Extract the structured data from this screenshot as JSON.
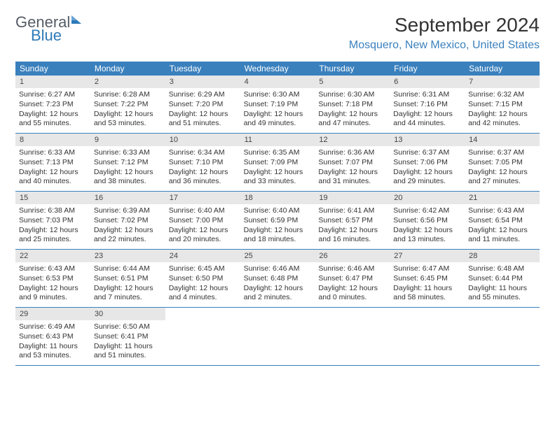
{
  "brand": {
    "line1": "General",
    "line2": "Blue"
  },
  "title": "September 2024",
  "location": "Mosquero, New Mexico, United States",
  "colors": {
    "header_bar": "#3a80bd",
    "daynum_bg": "#e7e7e7",
    "accent_text": "#3a80bd",
    "body_text": "#333333",
    "background": "#ffffff"
  },
  "weekdays": [
    "Sunday",
    "Monday",
    "Tuesday",
    "Wednesday",
    "Thursday",
    "Friday",
    "Saturday"
  ],
  "weeks": [
    [
      {
        "n": "1",
        "sr": "Sunrise: 6:27 AM",
        "ss": "Sunset: 7:23 PM",
        "dl": "Daylight: 12 hours and 55 minutes."
      },
      {
        "n": "2",
        "sr": "Sunrise: 6:28 AM",
        "ss": "Sunset: 7:22 PM",
        "dl": "Daylight: 12 hours and 53 minutes."
      },
      {
        "n": "3",
        "sr": "Sunrise: 6:29 AM",
        "ss": "Sunset: 7:20 PM",
        "dl": "Daylight: 12 hours and 51 minutes."
      },
      {
        "n": "4",
        "sr": "Sunrise: 6:30 AM",
        "ss": "Sunset: 7:19 PM",
        "dl": "Daylight: 12 hours and 49 minutes."
      },
      {
        "n": "5",
        "sr": "Sunrise: 6:30 AM",
        "ss": "Sunset: 7:18 PM",
        "dl": "Daylight: 12 hours and 47 minutes."
      },
      {
        "n": "6",
        "sr": "Sunrise: 6:31 AM",
        "ss": "Sunset: 7:16 PM",
        "dl": "Daylight: 12 hours and 44 minutes."
      },
      {
        "n": "7",
        "sr": "Sunrise: 6:32 AM",
        "ss": "Sunset: 7:15 PM",
        "dl": "Daylight: 12 hours and 42 minutes."
      }
    ],
    [
      {
        "n": "8",
        "sr": "Sunrise: 6:33 AM",
        "ss": "Sunset: 7:13 PM",
        "dl": "Daylight: 12 hours and 40 minutes."
      },
      {
        "n": "9",
        "sr": "Sunrise: 6:33 AM",
        "ss": "Sunset: 7:12 PM",
        "dl": "Daylight: 12 hours and 38 minutes."
      },
      {
        "n": "10",
        "sr": "Sunrise: 6:34 AM",
        "ss": "Sunset: 7:10 PM",
        "dl": "Daylight: 12 hours and 36 minutes."
      },
      {
        "n": "11",
        "sr": "Sunrise: 6:35 AM",
        "ss": "Sunset: 7:09 PM",
        "dl": "Daylight: 12 hours and 33 minutes."
      },
      {
        "n": "12",
        "sr": "Sunrise: 6:36 AM",
        "ss": "Sunset: 7:07 PM",
        "dl": "Daylight: 12 hours and 31 minutes."
      },
      {
        "n": "13",
        "sr": "Sunrise: 6:37 AM",
        "ss": "Sunset: 7:06 PM",
        "dl": "Daylight: 12 hours and 29 minutes."
      },
      {
        "n": "14",
        "sr": "Sunrise: 6:37 AM",
        "ss": "Sunset: 7:05 PM",
        "dl": "Daylight: 12 hours and 27 minutes."
      }
    ],
    [
      {
        "n": "15",
        "sr": "Sunrise: 6:38 AM",
        "ss": "Sunset: 7:03 PM",
        "dl": "Daylight: 12 hours and 25 minutes."
      },
      {
        "n": "16",
        "sr": "Sunrise: 6:39 AM",
        "ss": "Sunset: 7:02 PM",
        "dl": "Daylight: 12 hours and 22 minutes."
      },
      {
        "n": "17",
        "sr": "Sunrise: 6:40 AM",
        "ss": "Sunset: 7:00 PM",
        "dl": "Daylight: 12 hours and 20 minutes."
      },
      {
        "n": "18",
        "sr": "Sunrise: 6:40 AM",
        "ss": "Sunset: 6:59 PM",
        "dl": "Daylight: 12 hours and 18 minutes."
      },
      {
        "n": "19",
        "sr": "Sunrise: 6:41 AM",
        "ss": "Sunset: 6:57 PM",
        "dl": "Daylight: 12 hours and 16 minutes."
      },
      {
        "n": "20",
        "sr": "Sunrise: 6:42 AM",
        "ss": "Sunset: 6:56 PM",
        "dl": "Daylight: 12 hours and 13 minutes."
      },
      {
        "n": "21",
        "sr": "Sunrise: 6:43 AM",
        "ss": "Sunset: 6:54 PM",
        "dl": "Daylight: 12 hours and 11 minutes."
      }
    ],
    [
      {
        "n": "22",
        "sr": "Sunrise: 6:43 AM",
        "ss": "Sunset: 6:53 PM",
        "dl": "Daylight: 12 hours and 9 minutes."
      },
      {
        "n": "23",
        "sr": "Sunrise: 6:44 AM",
        "ss": "Sunset: 6:51 PM",
        "dl": "Daylight: 12 hours and 7 minutes."
      },
      {
        "n": "24",
        "sr": "Sunrise: 6:45 AM",
        "ss": "Sunset: 6:50 PM",
        "dl": "Daylight: 12 hours and 4 minutes."
      },
      {
        "n": "25",
        "sr": "Sunrise: 6:46 AM",
        "ss": "Sunset: 6:48 PM",
        "dl": "Daylight: 12 hours and 2 minutes."
      },
      {
        "n": "26",
        "sr": "Sunrise: 6:46 AM",
        "ss": "Sunset: 6:47 PM",
        "dl": "Daylight: 12 hours and 0 minutes."
      },
      {
        "n": "27",
        "sr": "Sunrise: 6:47 AM",
        "ss": "Sunset: 6:45 PM",
        "dl": "Daylight: 11 hours and 58 minutes."
      },
      {
        "n": "28",
        "sr": "Sunrise: 6:48 AM",
        "ss": "Sunset: 6:44 PM",
        "dl": "Daylight: 11 hours and 55 minutes."
      }
    ],
    [
      {
        "n": "29",
        "sr": "Sunrise: 6:49 AM",
        "ss": "Sunset: 6:43 PM",
        "dl": "Daylight: 11 hours and 53 minutes."
      },
      {
        "n": "30",
        "sr": "Sunrise: 6:50 AM",
        "ss": "Sunset: 6:41 PM",
        "dl": "Daylight: 11 hours and 51 minutes."
      },
      null,
      null,
      null,
      null,
      null
    ]
  ]
}
